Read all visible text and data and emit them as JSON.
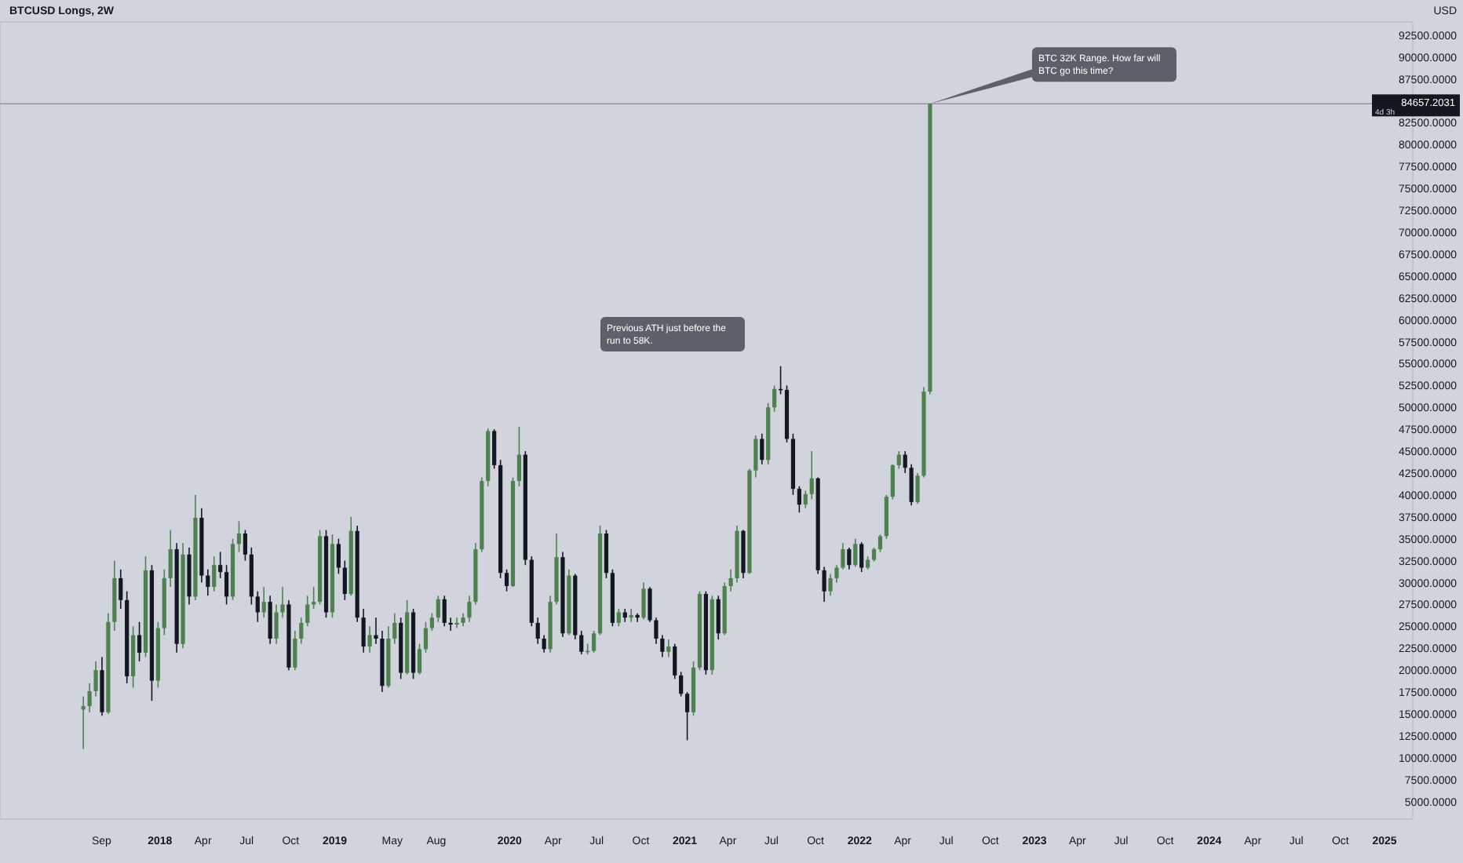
{
  "chart_data": {
    "type": "candlestick",
    "title": "BTCUSD Longs, 2W",
    "ylabel": "USD",
    "colors": [
      "#4f8050",
      "#4f8050",
      "#4f8050",
      "#131722",
      "#4f8050",
      "#4f8050",
      "#131722",
      "#131722",
      "#4f8050",
      "#131722",
      "#4f8050",
      "#131722",
      "#4f8050",
      "#4f8050",
      "#4f8050",
      "#131722",
      "#4f8050",
      "#131722",
      "#4f8050",
      "#131722",
      "#131722",
      "#4f8050",
      "#131722",
      "#131722",
      "#4f8050",
      "#4f8050",
      "#131722",
      "#131722",
      "#131722",
      "#4f8050",
      "#131722",
      "#4f8050",
      "#4f8050",
      "#131722",
      "#4f8050",
      "#4f8050",
      "#4f8050",
      "#4f8050",
      "#4f8050",
      "#131722",
      "#4f8050",
      "#131722",
      "#131722",
      "#4f8050",
      "#131722",
      "#131722",
      "#4f8050",
      "#131722",
      "#131722",
      "#4f8050",
      "#4f8050",
      "#131722",
      "#4f8050",
      "#131722",
      "#4f8050",
      "#4f8050",
      "#4f8050",
      "#4f8050",
      "#131722",
      "#131722",
      "#4f8050",
      "#4f8050",
      "#4f8050",
      "#4f8050",
      "#4f8050",
      "#4f8050",
      "#131722",
      "#131722",
      "#131722",
      "#4f8050",
      "#4f8050",
      "#131722",
      "#131722",
      "#131722",
      "#131722",
      "#4f8050",
      "#4f8050",
      "#131722",
      "#4f8050",
      "#131722",
      "#131722",
      "#4f8050",
      "#4f8050",
      "#4f8050",
      "#131722",
      "#131722",
      "#4f8050",
      "#131722",
      "#4f8050",
      "#131722",
      "#4f8050",
      "#131722",
      "#131722",
      "#131722",
      "#4f8050",
      "#131722",
      "#131722",
      "#131722",
      "#4f8050",
      "#4f8050",
      "#131722",
      "#4f8050",
      "#131722",
      "#4f8050",
      "#4f8050",
      "#4f8050",
      "#131722",
      "#4f8050",
      "#4f8050",
      "#131722",
      "#4f8050",
      "#4f8050",
      "#131722",
      "#131722",
      "#131722",
      "#131722",
      "#4f8050",
      "#4f8050",
      "#131722",
      "#131722",
      "#4f8050",
      "#4f8050",
      "#4f8050",
      "#131722",
      "#4f8050",
      "#131722",
      "#4f8050",
      "#4f8050",
      "#4f8050",
      "#4f8050",
      "#4f8050",
      "#4f8050",
      "#131722",
      "#131722",
      "#4f8050",
      "#4f8050",
      "#4f8050"
    ],
    "x": [
      "2017-07-25",
      "2017-08-07",
      "2017-08-20",
      "2017-09-02",
      "2017-09-15",
      "2017-09-28",
      "2017-10-11",
      "2017-10-24",
      "2017-11-06",
      "2017-11-19",
      "2017-12-02",
      "2017-12-15",
      "2017-12-28",
      "2018-01-10",
      "2018-01-23",
      "2018-02-05",
      "2018-02-18",
      "2018-03-03",
      "2018-03-16",
      "2018-03-29",
      "2018-04-11",
      "2018-04-24",
      "2018-05-07",
      "2018-05-20",
      "2018-06-02",
      "2018-06-15",
      "2018-06-28",
      "2018-07-11",
      "2018-07-24",
      "2018-08-06",
      "2018-08-19",
      "2018-09-01",
      "2018-09-14",
      "2018-09-27",
      "2018-10-10",
      "2018-10-23",
      "2018-11-05",
      "2018-11-18",
      "2018-12-01",
      "2018-12-14",
      "2018-12-27",
      "2019-01-09",
      "2019-01-22",
      "2019-02-04",
      "2019-02-17",
      "2019-03-02",
      "2019-03-15",
      "2019-03-28",
      "2019-04-10",
      "2019-04-23",
      "2019-05-06",
      "2019-05-19",
      "2019-06-01",
      "2019-06-14",
      "2019-06-27",
      "2019-07-10",
      "2019-07-23",
      "2019-08-05",
      "2019-08-18",
      "2019-08-31",
      "2019-09-13",
      "2019-09-26",
      "2019-10-09",
      "2019-10-22",
      "2019-11-04",
      "2019-11-17",
      "2019-11-30",
      "2019-12-13",
      "2019-12-26",
      "2020-01-08",
      "2020-01-21",
      "2020-02-03",
      "2020-02-16",
      "2020-02-29",
      "2020-03-13",
      "2020-03-26",
      "2020-04-08",
      "2020-04-21",
      "2020-05-04",
      "2020-05-17",
      "2020-05-30",
      "2020-06-12",
      "2020-06-25",
      "2020-07-08",
      "2020-07-21",
      "2020-08-03",
      "2020-08-16",
      "2020-08-29",
      "2020-09-11",
      "2020-09-24",
      "2020-10-07",
      "2020-10-20",
      "2020-11-02",
      "2020-11-15",
      "2020-11-28",
      "2020-12-11",
      "2020-12-24",
      "2021-01-06",
      "2021-01-19",
      "2021-02-01",
      "2021-02-14",
      "2021-02-27",
      "2021-03-12",
      "2021-03-25",
      "2021-04-07",
      "2021-04-20",
      "2021-05-03",
      "2021-05-16",
      "2021-05-29",
      "2021-06-11",
      "2021-06-24",
      "2021-07-07",
      "2021-07-20",
      "2021-08-02",
      "2021-08-15",
      "2021-08-28",
      "2021-09-10",
      "2021-09-23",
      "2021-10-06",
      "2021-10-19",
      "2021-11-01",
      "2021-11-14",
      "2021-11-27",
      "2021-12-10",
      "2021-12-23",
      "2022-01-05",
      "2022-01-18",
      "2022-01-31",
      "2022-02-13",
      "2022-02-26",
      "2022-03-11",
      "2022-03-24",
      "2022-04-06",
      "2022-04-19",
      "2022-05-02",
      "2022-05-15",
      "2022-05-28"
    ],
    "ohlc": [
      [
        15500,
        17000,
        11000,
        15900
      ],
      [
        15900,
        18500,
        15200,
        17600
      ],
      [
        17600,
        21000,
        17000,
        20000
      ],
      [
        20000,
        21500,
        14800,
        15200
      ],
      [
        15200,
        26500,
        15000,
        25500
      ],
      [
        25500,
        32500,
        24500,
        30500
      ],
      [
        30500,
        31500,
        27000,
        28000
      ],
      [
        28000,
        29000,
        18500,
        19300
      ],
      [
        19300,
        25000,
        18000,
        24000
      ],
      [
        24000,
        25500,
        21000,
        22000
      ],
      [
        22000,
        33000,
        21500,
        31400
      ],
      [
        31400,
        32000,
        16500,
        18800
      ],
      [
        18800,
        25500,
        18000,
        24800
      ],
      [
        24800,
        31500,
        24000,
        30500
      ],
      [
        30500,
        36000,
        29500,
        33800
      ],
      [
        33800,
        34500,
        22000,
        23000
      ],
      [
        23000,
        34500,
        22500,
        33200
      ],
      [
        33200,
        34000,
        27500,
        28400
      ],
      [
        28400,
        40000,
        28000,
        37400
      ],
      [
        37400,
        38500,
        30000,
        30800
      ],
      [
        30800,
        31500,
        28500,
        29500
      ],
      [
        29500,
        33000,
        29000,
        32000
      ],
      [
        32000,
        33500,
        30500,
        31200
      ],
      [
        31200,
        32000,
        27500,
        28400
      ],
      [
        28400,
        35000,
        28000,
        34400
      ],
      [
        34400,
        37000,
        33500,
        35600
      ],
      [
        35600,
        36000,
        32500,
        33200
      ],
      [
        33200,
        34000,
        27500,
        28400
      ],
      [
        28400,
        29000,
        25500,
        26600
      ],
      [
        26600,
        29500,
        26000,
        27800
      ],
      [
        27800,
        28500,
        23000,
        23600
      ],
      [
        23600,
        27500,
        23000,
        26600
      ],
      [
        26600,
        29500,
        26000,
        27500
      ],
      [
        27500,
        28000,
        20000,
        20300
      ],
      [
        20300,
        24500,
        20000,
        23600
      ],
      [
        23600,
        26000,
        23000,
        25400
      ],
      [
        25400,
        28500,
        25000,
        27500
      ],
      [
        27500,
        29500,
        27000,
        27800
      ],
      [
        27800,
        36000,
        27500,
        35300
      ],
      [
        35300,
        36000,
        26000,
        26600
      ],
      [
        26600,
        35500,
        26000,
        34400
      ],
      [
        34400,
        35000,
        31000,
        31700
      ],
      [
        31700,
        32500,
        28000,
        28700
      ],
      [
        28700,
        37500,
        28500,
        35900
      ],
      [
        35900,
        36500,
        25500,
        26000
      ],
      [
        26000,
        27000,
        22000,
        22700
      ],
      [
        22700,
        25000,
        22000,
        24000
      ],
      [
        24000,
        26000,
        23000,
        23600
      ],
      [
        23600,
        24500,
        17500,
        18200
      ],
      [
        18200,
        25000,
        18000,
        23600
      ],
      [
        23600,
        26500,
        23000,
        25400
      ],
      [
        25400,
        26000,
        19000,
        19700
      ],
      [
        19700,
        28000,
        19500,
        26600
      ],
      [
        26600,
        27000,
        19000,
        19700
      ],
      [
        19700,
        23000,
        19500,
        22400
      ],
      [
        22400,
        25500,
        22000,
        24800
      ],
      [
        24800,
        26500,
        24500,
        26000
      ],
      [
        26000,
        28500,
        25500,
        28100
      ],
      [
        28100,
        28500,
        25000,
        25400
      ],
      [
        25400,
        26000,
        24500,
        25200
      ],
      [
        25200,
        26000,
        24800,
        25400
      ],
      [
        25400,
        26500,
        25000,
        26000
      ],
      [
        26000,
        28500,
        25500,
        27800
      ],
      [
        27800,
        34500,
        27500,
        33800
      ],
      [
        33800,
        42000,
        33500,
        41600
      ],
      [
        41600,
        47600,
        41000,
        47300
      ],
      [
        47300,
        47500,
        43000,
        43400
      ],
      [
        43400,
        44000,
        30500,
        31100
      ],
      [
        31100,
        31500,
        29000,
        29600
      ],
      [
        29600,
        42000,
        29500,
        41600
      ],
      [
        41600,
        47800,
        41000,
        44600
      ],
      [
        44600,
        45000,
        32000,
        32600
      ],
      [
        32600,
        33000,
        25000,
        25400
      ],
      [
        25400,
        26000,
        23000,
        23600
      ],
      [
        23600,
        24000,
        22000,
        22400
      ],
      [
        22400,
        28500,
        22000,
        27800
      ],
      [
        27800,
        35600,
        27500,
        32900
      ],
      [
        32900,
        33500,
        23800,
        24200
      ],
      [
        24200,
        31500,
        24000,
        30800
      ],
      [
        30800,
        31000,
        23500,
        24000
      ],
      [
        24000,
        24500,
        21800,
        22100
      ],
      [
        22100,
        23000,
        21800,
        22200
      ],
      [
        22200,
        24500,
        22000,
        24200
      ],
      [
        24200,
        36500,
        24000,
        35600
      ],
      [
        35600,
        36000,
        30500,
        31100
      ],
      [
        31100,
        31500,
        25000,
        25400
      ],
      [
        25400,
        27000,
        25000,
        26600
      ],
      [
        26600,
        27000,
        25500,
        26000
      ],
      [
        26000,
        27000,
        25500,
        26300
      ],
      [
        26300,
        26500,
        25500,
        26000
      ],
      [
        26000,
        30000,
        25800,
        29300
      ],
      [
        29300,
        29500,
        25500,
        25700
      ],
      [
        25700,
        26000,
        23000,
        23600
      ],
      [
        23600,
        24000,
        21500,
        22100
      ],
      [
        22100,
        23500,
        21500,
        22700
      ],
      [
        22700,
        23000,
        19000,
        19400
      ],
      [
        19400,
        19800,
        17000,
        17300
      ],
      [
        17300,
        17500,
        12000,
        15200
      ],
      [
        15200,
        21000,
        14800,
        20300
      ],
      [
        20300,
        29000,
        20000,
        28700
      ],
      [
        28700,
        29000,
        19500,
        20000
      ],
      [
        20000,
        28500,
        19500,
        28100
      ],
      [
        28100,
        28500,
        23500,
        24200
      ],
      [
        24200,
        30000,
        24000,
        29600
      ],
      [
        29600,
        31500,
        29000,
        30500
      ],
      [
        30500,
        36500,
        30000,
        35900
      ],
      [
        35900,
        36000,
        30500,
        31100
      ],
      [
        31100,
        43000,
        31000,
        42800
      ],
      [
        42800,
        46800,
        42000,
        46400
      ],
      [
        46400,
        47000,
        43500,
        44000
      ],
      [
        44000,
        50500,
        43500,
        50000
      ],
      [
        50000,
        52500,
        49500,
        52100
      ],
      [
        52100,
        54700,
        51500,
        52000
      ],
      [
        52000,
        52500,
        46000,
        46400
      ],
      [
        46400,
        47000,
        40000,
        40700
      ],
      [
        40700,
        41000,
        38000,
        38900
      ],
      [
        38900,
        40500,
        38500,
        40100
      ],
      [
        40100,
        45000,
        39500,
        41900
      ],
      [
        41900,
        42000,
        31000,
        31400
      ],
      [
        31400,
        31800,
        27800,
        29000
      ],
      [
        29000,
        31000,
        28500,
        30500
      ],
      [
        30500,
        32000,
        30000,
        31700
      ],
      [
        31700,
        34500,
        31500,
        33800
      ],
      [
        33800,
        34000,
        31500,
        32000
      ],
      [
        32000,
        35000,
        31800,
        34400
      ],
      [
        34400,
        34600,
        31200,
        31700
      ],
      [
        31700,
        33000,
        31500,
        32600
      ],
      [
        32600,
        34000,
        32400,
        33800
      ],
      [
        33800,
        35500,
        33500,
        35300
      ],
      [
        35300,
        40000,
        35000,
        39800
      ],
      [
        39800,
        43500,
        39500,
        43400
      ],
      [
        43400,
        45000,
        43000,
        44600
      ],
      [
        44600,
        45000,
        42500,
        43100
      ],
      [
        43100,
        43500,
        38800,
        39200
      ],
      [
        39200,
        42500,
        39000,
        42200
      ],
      [
        42200,
        52300,
        42000,
        51800
      ],
      [
        51800,
        84657.2031,
        51500,
        84657.2031
      ]
    ],
    "xlim": [
      "2017-02-01",
      "2025-03-01"
    ],
    "xticks": [
      {
        "value": "2017-09-01",
        "label": "Sep"
      },
      {
        "value": "2018-01-01",
        "label": "2018"
      },
      {
        "value": "2018-04-01",
        "label": "Apr"
      },
      {
        "value": "2018-07-01",
        "label": "Jul"
      },
      {
        "value": "2018-10-01",
        "label": "Oct"
      },
      {
        "value": "2019-01-01",
        "label": "2019"
      },
      {
        "value": "2019-05-01",
        "label": "May"
      },
      {
        "value": "2019-08-01",
        "label": "Aug"
      },
      {
        "value": "2020-01-01",
        "label": "2020"
      },
      {
        "value": "2020-04-01",
        "label": "Apr"
      },
      {
        "value": "2020-07-01",
        "label": "Jul"
      },
      {
        "value": "2020-10-01",
        "label": "Oct"
      },
      {
        "value": "2021-01-01",
        "label": "2021"
      },
      {
        "value": "2021-04-01",
        "label": "Apr"
      },
      {
        "value": "2021-07-01",
        "label": "Jul"
      },
      {
        "value": "2021-10-01",
        "label": "Oct"
      },
      {
        "value": "2022-01-01",
        "label": "2022"
      },
      {
        "value": "2022-04-01",
        "label": "Apr"
      },
      {
        "value": "2022-07-01",
        "label": "Jul"
      },
      {
        "value": "2022-10-01",
        "label": "Oct"
      },
      {
        "value": "2023-01-01",
        "label": "2023"
      },
      {
        "value": "2023-04-01",
        "label": "Apr"
      },
      {
        "value": "2023-07-01",
        "label": "Jul"
      },
      {
        "value": "2023-10-01",
        "label": "Oct"
      },
      {
        "value": "2024-01-01",
        "label": "2024"
      },
      {
        "value": "2024-04-01",
        "label": "Apr"
      },
      {
        "value": "2024-07-01",
        "label": "Jul"
      },
      {
        "value": "2024-10-01",
        "label": "Oct"
      },
      {
        "value": "2025-01-01",
        "label": "2025"
      }
    ],
    "ylim": [
      3000,
      94000
    ],
    "yticks": [
      {
        "value": 5000,
        "label": "5000.0000"
      },
      {
        "value": 7500,
        "label": "7500.0000"
      },
      {
        "value": 10000,
        "label": "10000.0000"
      },
      {
        "value": 12500,
        "label": "12500.0000"
      },
      {
        "value": 15000,
        "label": "15000.0000"
      },
      {
        "value": 17500,
        "label": "17500.0000"
      },
      {
        "value": 20000,
        "label": "20000.0000"
      },
      {
        "value": 22500,
        "label": "22500.0000"
      },
      {
        "value": 25000,
        "label": "25000.0000"
      },
      {
        "value": 27500,
        "label": "27500.0000"
      },
      {
        "value": 30000,
        "label": "30000.0000"
      },
      {
        "value": 32500,
        "label": "32500.0000"
      },
      {
        "value": 35000,
        "label": "35000.0000"
      },
      {
        "value": 37500,
        "label": "37500.0000"
      },
      {
        "value": 40000,
        "label": "40000.0000"
      },
      {
        "value": 42500,
        "label": "42500.0000"
      },
      {
        "value": 45000,
        "label": "45000.0000"
      },
      {
        "value": 47500,
        "label": "47500.0000"
      },
      {
        "value": 50000,
        "label": "50000.0000"
      },
      {
        "value": 52500,
        "label": "52500.0000"
      },
      {
        "value": 55000,
        "label": "55000.0000"
      },
      {
        "value": 57500,
        "label": "57500.0000"
      },
      {
        "value": 60000,
        "label": "60000.0000"
      },
      {
        "value": 62500,
        "label": "62500.0000"
      },
      {
        "value": 65000,
        "label": "65000.0000"
      },
      {
        "value": 67500,
        "label": "67500.0000"
      },
      {
        "value": 70000,
        "label": "70000.0000"
      },
      {
        "value": 72500,
        "label": "72500.0000"
      },
      {
        "value": 75000,
        "label": "75000.0000"
      },
      {
        "value": 77500,
        "label": "77500.0000"
      },
      {
        "value": 80000,
        "label": "80000.0000"
      },
      {
        "value": 82500,
        "label": "82500.0000"
      },
      {
        "value": 87500,
        "label": "87500.0000"
      },
      {
        "value": 90000,
        "label": "90000.0000"
      },
      {
        "value": 92500,
        "label": "92500.0000"
      }
    ],
    "ref_lines": [
      {
        "axis": "y",
        "value": 84657.2031,
        "label": "84657.2031",
        "color": "#9598a1"
      }
    ],
    "annotations": [
      "Previous ATH just before the run to 58K.",
      {
        "text": "BTC 32K Range. How far will BTC go this time?",
        "x": "2022-05-28",
        "y": 84657.2031
      },
      "4d 3h"
    ]
  }
}
